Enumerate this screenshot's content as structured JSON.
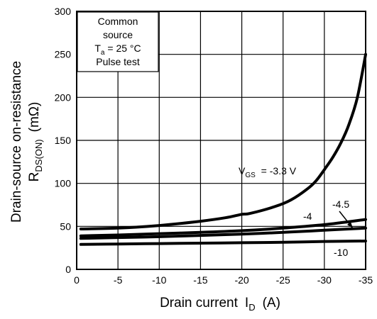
{
  "chart_data": {
    "type": "line",
    "xlabel": {
      "text": "Drain current",
      "sym": "I",
      "sub": "D",
      "unit": "(A)"
    },
    "ylabel": {
      "line1": "Drain-source on-resistance",
      "sym": "R",
      "sub": "DS(ON)",
      "unit": "(mΩ)"
    },
    "xlim": [
      0,
      -35
    ],
    "ylim": [
      0,
      300
    ],
    "xticks": [
      0,
      -5,
      -10,
      -15,
      -20,
      -25,
      -30,
      -35
    ],
    "xtick_labels": [
      "0",
      "-5",
      "-10",
      "-15",
      "-20",
      "-25",
      "-30",
      "-35"
    ],
    "yticks": [
      0,
      50,
      100,
      150,
      200,
      250,
      300
    ],
    "ytick_labels": [
      "0",
      "50",
      "100",
      "150",
      "200",
      "250",
      "300"
    ],
    "grid": true,
    "legend_box": {
      "lines": [
        "Common",
        "source",
        "Ta = 25 °C",
        "Pulse test"
      ]
    },
    "series": [
      {
        "name": "VGS = -3.3 V",
        "label_parts": {
          "sym": "V",
          "sub": "GS",
          "rest": " = -3.3 V"
        },
        "x": [
          -0.5,
          -5,
          -10,
          -15,
          -18,
          -20,
          -21,
          -24,
          -26,
          -28,
          -29,
          -30,
          -31,
          -32,
          -33,
          -34,
          -35
        ],
        "y": [
          47,
          48,
          51,
          56,
          60,
          64,
          65,
          73,
          81,
          94,
          103,
          116,
          130,
          147,
          169,
          200,
          250
        ]
      },
      {
        "name": "-4",
        "label_parts": {
          "sym": "",
          "sub": "",
          "rest": "-4"
        },
        "x": [
          -0.5,
          -5,
          -10,
          -15,
          -20,
          -25,
          -30,
          -35
        ],
        "y": [
          39,
          40,
          41.5,
          43,
          45,
          48,
          52,
          58
        ]
      },
      {
        "name": "-4.5",
        "label_parts": {
          "sym": "",
          "sub": "",
          "rest": "-4.5"
        },
        "x": [
          -0.5,
          -5,
          -10,
          -15,
          -20,
          -25,
          -30,
          -35
        ],
        "y": [
          36,
          37,
          38,
          39.5,
          41,
          43,
          45.5,
          48
        ]
      },
      {
        "name": "-10",
        "label_parts": {
          "sym": "",
          "sub": "",
          "rest": "-10"
        },
        "x": [
          -0.5,
          -5,
          -10,
          -15,
          -20,
          -25,
          -30,
          -35
        ],
        "y": [
          29,
          29.5,
          30,
          30.5,
          31,
          31.5,
          32.5,
          33
        ]
      }
    ]
  }
}
